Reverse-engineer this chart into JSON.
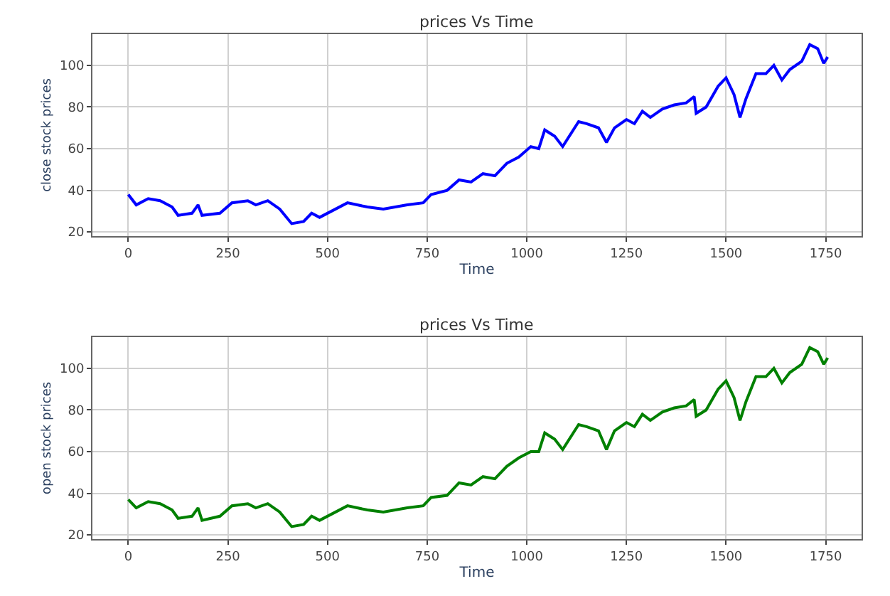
{
  "chart_data": [
    {
      "type": "line",
      "title": "prices Vs Time",
      "xlabel": "Time",
      "ylabel": "close stock prices",
      "xlim": [
        -90,
        1840
      ],
      "ylim": [
        18,
        115
      ],
      "xticks": [
        0,
        250,
        500,
        750,
        1000,
        1250,
        1500,
        1750
      ],
      "yticks": [
        20,
        40,
        60,
        80,
        100
      ],
      "grid": true,
      "x": [
        0,
        20,
        50,
        80,
        110,
        125,
        160,
        175,
        185,
        230,
        260,
        300,
        320,
        350,
        380,
        410,
        440,
        460,
        480,
        550,
        600,
        640,
        700,
        740,
        760,
        800,
        830,
        860,
        890,
        920,
        950,
        980,
        1010,
        1030,
        1045,
        1070,
        1090,
        1130,
        1150,
        1180,
        1200,
        1220,
        1250,
        1270,
        1290,
        1310,
        1340,
        1370,
        1400,
        1420,
        1425,
        1450,
        1480,
        1500,
        1520,
        1535,
        1550,
        1575,
        1600,
        1620,
        1640,
        1660,
        1690,
        1710,
        1730,
        1745,
        1755
      ],
      "series": [
        {
          "color": "#0000ff",
          "values": [
            38,
            33,
            36,
            35,
            32,
            28,
            29,
            33,
            28,
            29,
            34,
            35,
            33,
            35,
            31,
            24,
            25,
            29,
            27,
            34,
            32,
            31,
            33,
            34,
            38,
            40,
            45,
            44,
            48,
            47,
            53,
            56,
            61,
            60,
            69,
            66,
            61,
            73,
            72,
            70,
            63,
            70,
            74,
            72,
            78,
            75,
            79,
            81,
            82,
            85,
            77,
            80,
            90,
            94,
            86,
            75,
            84,
            96,
            96,
            100,
            93,
            98,
            102,
            110,
            108,
            101,
            104
          ]
        }
      ]
    },
    {
      "type": "line",
      "title": "prices Vs Time",
      "xlabel": "Time",
      "ylabel": "open stock prices",
      "xlim": [
        -90,
        1840
      ],
      "ylim": [
        18,
        115
      ],
      "xticks": [
        0,
        250,
        500,
        750,
        1000,
        1250,
        1500,
        1750
      ],
      "yticks": [
        20,
        40,
        60,
        80,
        100
      ],
      "grid": true,
      "x": [
        0,
        20,
        50,
        80,
        110,
        125,
        160,
        175,
        185,
        230,
        260,
        300,
        320,
        350,
        380,
        410,
        440,
        460,
        480,
        550,
        600,
        640,
        700,
        740,
        760,
        800,
        830,
        860,
        890,
        920,
        950,
        980,
        1010,
        1030,
        1045,
        1070,
        1090,
        1130,
        1150,
        1180,
        1200,
        1220,
        1250,
        1270,
        1290,
        1310,
        1340,
        1370,
        1400,
        1420,
        1425,
        1450,
        1480,
        1500,
        1520,
        1535,
        1550,
        1575,
        1600,
        1620,
        1640,
        1660,
        1690,
        1710,
        1730,
        1745,
        1755
      ],
      "series": [
        {
          "color": "#008000",
          "values": [
            37,
            33,
            36,
            35,
            32,
            28,
            29,
            33,
            27,
            29,
            34,
            35,
            33,
            35,
            31,
            24,
            25,
            29,
            27,
            34,
            32,
            31,
            33,
            34,
            38,
            39,
            45,
            44,
            48,
            47,
            53,
            57,
            60,
            60,
            69,
            66,
            61,
            73,
            72,
            70,
            61,
            70,
            74,
            72,
            78,
            75,
            79,
            81,
            82,
            85,
            77,
            80,
            90,
            94,
            86,
            75,
            84,
            96,
            96,
            100,
            93,
            98,
            102,
            110,
            108,
            102,
            105
          ]
        }
      ]
    }
  ]
}
